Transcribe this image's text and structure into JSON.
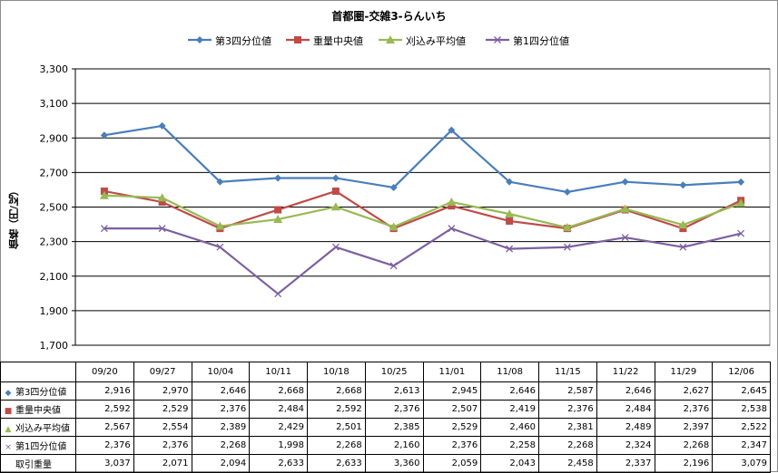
{
  "chart_data": {
    "type": "line",
    "title": "首都圏-交雑3-らんいち",
    "ylabel": "価格（円/㎏）",
    "categories": [
      "09/20",
      "09/27",
      "10/04",
      "10/11",
      "10/18",
      "10/25",
      "11/01",
      "11/08",
      "11/15",
      "11/22",
      "11/29",
      "12/06"
    ],
    "ylim": [
      1700,
      3300
    ],
    "yticks": [
      "1,700",
      "1,900",
      "2,100",
      "2,300",
      "2,500",
      "2,700",
      "2,900",
      "3,100",
      "3,300"
    ],
    "ytick_values": [
      1700,
      1900,
      2100,
      2300,
      2500,
      2700,
      2900,
      3100,
      3300
    ],
    "grid": true,
    "legend_position": "top",
    "series": [
      {
        "name": "第3四分位値",
        "color": "#4a7ebb",
        "marker": "diamond",
        "marker_glyph": "◆",
        "values": [
          2916,
          2970,
          2646,
          2668,
          2668,
          2613,
          2945,
          2646,
          2587,
          2646,
          2627,
          2645
        ],
        "display": [
          "2,916",
          "2,970",
          "2,646",
          "2,668",
          "2,668",
          "2,613",
          "2,945",
          "2,646",
          "2,587",
          "2,646",
          "2,627",
          "2,645"
        ]
      },
      {
        "name": "重量中央値",
        "color": "#be4b48",
        "marker": "square",
        "marker_glyph": "■",
        "values": [
          2592,
          2529,
          2376,
          2484,
          2592,
          2376,
          2507,
          2419,
          2376,
          2484,
          2376,
          2538
        ],
        "display": [
          "2,592",
          "2,529",
          "2,376",
          "2,484",
          "2,592",
          "2,376",
          "2,507",
          "2,419",
          "2,376",
          "2,484",
          "2,376",
          "2,538"
        ]
      },
      {
        "name": "刈込み平均値",
        "color": "#98b954",
        "marker": "triangle",
        "marker_glyph": "▲",
        "values": [
          2567,
          2554,
          2389,
          2429,
          2501,
          2385,
          2529,
          2460,
          2381,
          2489,
          2397,
          2522
        ],
        "display": [
          "2,567",
          "2,554",
          "2,389",
          "2,429",
          "2,501",
          "2,385",
          "2,529",
          "2,460",
          "2,381",
          "2,489",
          "2,397",
          "2,522"
        ]
      },
      {
        "name": "第1四分位値",
        "color": "#7d60a0",
        "marker": "x",
        "marker_glyph": "×",
        "values": [
          2376,
          2376,
          2268,
          1998,
          2268,
          2160,
          2376,
          2258,
          2268,
          2324,
          2268,
          2347
        ],
        "display": [
          "2,376",
          "2,376",
          "2,268",
          "1,998",
          "2,268",
          "2,160",
          "2,376",
          "2,258",
          "2,268",
          "2,324",
          "2,268",
          "2,347"
        ]
      }
    ],
    "table_extra_rows": [
      {
        "name": "取引重量",
        "display": [
          "3,037",
          "2,071",
          "2,094",
          "2,633",
          "2,633",
          "3,360",
          "2,059",
          "2,043",
          "2,458",
          "2,337",
          "2,196",
          "3,079"
        ]
      }
    ]
  }
}
